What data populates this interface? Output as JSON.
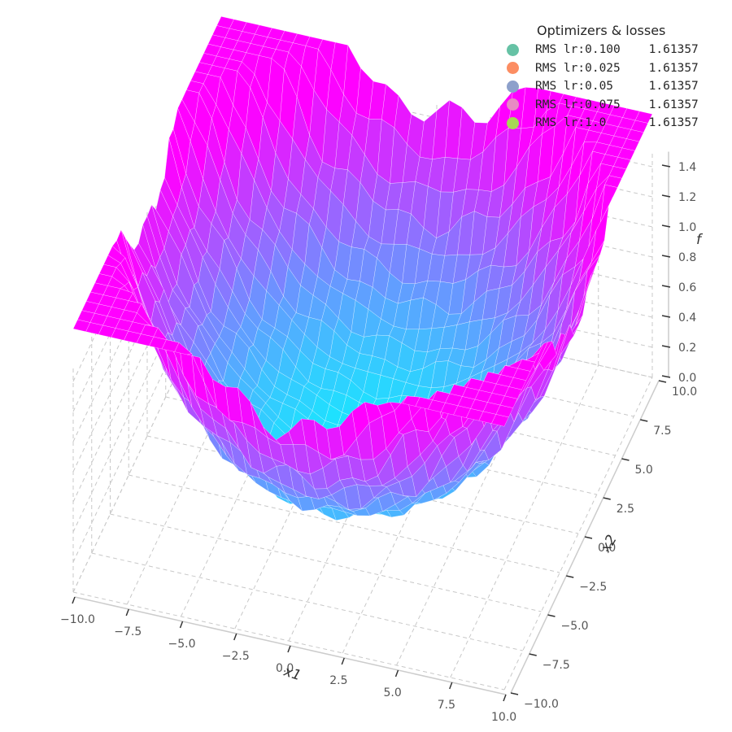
{
  "chart_data": {
    "type": "surface3d",
    "title": "",
    "xlabel": "x1",
    "ylabel": "x2",
    "zlabel": "f",
    "xlim": [
      -10,
      10
    ],
    "ylim": [
      -10,
      10
    ],
    "zlim": [
      0,
      1.5
    ],
    "x_ticks": [
      "−10.0",
      "−7.5",
      "−5.0",
      "−2.5",
      "0.0",
      "2.5",
      "5.0",
      "7.5",
      "10.0"
    ],
    "y_ticks": [
      "−10.0",
      "−7.5",
      "−5.0",
      "−2.5",
      "0.0",
      "2.5",
      "5.0",
      "7.5",
      "10.0"
    ],
    "z_ticks": [
      "0.0",
      "0.2",
      "0.4",
      "0.6",
      "0.8",
      "1.0",
      "1.2",
      "1.4"
    ],
    "colormap": [
      "#00ffff",
      "#ff00ff"
    ],
    "grid": true,
    "legend": {
      "title": "Optimizers & losses",
      "placement": "top-right",
      "entries": [
        {
          "label": "RMS lr:0.100    1.61357",
          "color": "#66c2a5"
        },
        {
          "label": "RMS lr:0.025    1.61357",
          "color": "#fc8d62"
        },
        {
          "label": "RMS lr:0.05     1.61357",
          "color": "#8da0cb"
        },
        {
          "label": "RMS lr:0.075    1.61357",
          "color": "#e78ac3"
        },
        {
          "label": "RMS lr:1.0      1.61357",
          "color": "#a6d854"
        }
      ]
    }
  }
}
